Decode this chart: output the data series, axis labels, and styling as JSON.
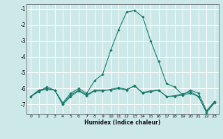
{
  "xlabel": "Humidex (Indice chaleur)",
  "ylabel": "",
  "xlim": [
    -0.5,
    23.5
  ],
  "ylim": [
    -7.6,
    -0.7
  ],
  "yticks": [
    -7,
    -6,
    -5,
    -4,
    -3,
    -2,
    -1
  ],
  "xticks": [
    0,
    1,
    2,
    3,
    4,
    5,
    6,
    7,
    8,
    9,
    10,
    11,
    12,
    13,
    14,
    15,
    16,
    17,
    18,
    19,
    20,
    21,
    22,
    23
  ],
  "bg_color": "#cde8e8",
  "grid_color": "#ffffff",
  "line_color": "#1a7a6e",
  "line1_x": [
    0,
    1,
    2,
    3,
    4,
    5,
    6,
    7,
    8,
    9,
    10,
    11,
    12,
    13,
    14,
    15,
    16,
    17,
    18,
    19,
    20,
    21,
    22,
    23
  ],
  "line1_y": [
    -6.5,
    -6.2,
    -5.9,
    -6.1,
    -6.9,
    -6.3,
    -6.0,
    -6.3,
    -5.5,
    -5.1,
    -3.6,
    -2.3,
    -1.2,
    -1.1,
    -1.5,
    -3.0,
    -4.3,
    -5.7,
    -5.9,
    -6.4,
    -6.1,
    -6.3,
    -7.4,
    -6.8
  ],
  "line2_x": [
    0,
    1,
    2,
    3,
    4,
    5,
    6,
    7,
    8,
    9,
    10,
    11,
    12,
    13,
    14,
    15,
    16,
    17,
    18,
    19,
    20,
    21,
    22,
    23
  ],
  "line2_y": [
    -6.5,
    -6.15,
    -6.05,
    -6.1,
    -7.0,
    -6.5,
    -6.15,
    -6.45,
    -6.15,
    -6.15,
    -6.05,
    -5.95,
    -6.05,
    -5.85,
    -6.25,
    -6.15,
    -6.1,
    -6.5,
    -6.45,
    -6.35,
    -6.2,
    -6.5,
    -7.5,
    -6.85
  ],
  "line3_x": [
    0,
    1,
    2,
    3,
    4,
    5,
    6,
    7,
    8,
    9,
    10,
    11,
    12,
    13,
    14,
    15,
    16,
    17,
    18,
    19,
    20,
    21,
    22,
    23
  ],
  "line3_y": [
    -6.5,
    -6.1,
    -6.0,
    -6.1,
    -7.0,
    -6.4,
    -6.1,
    -6.4,
    -6.1,
    -6.1,
    -6.1,
    -6.0,
    -6.1,
    -5.8,
    -6.3,
    -6.2,
    -6.1,
    -6.5,
    -6.5,
    -6.4,
    -6.3,
    -6.5,
    -7.5,
    -6.9
  ]
}
